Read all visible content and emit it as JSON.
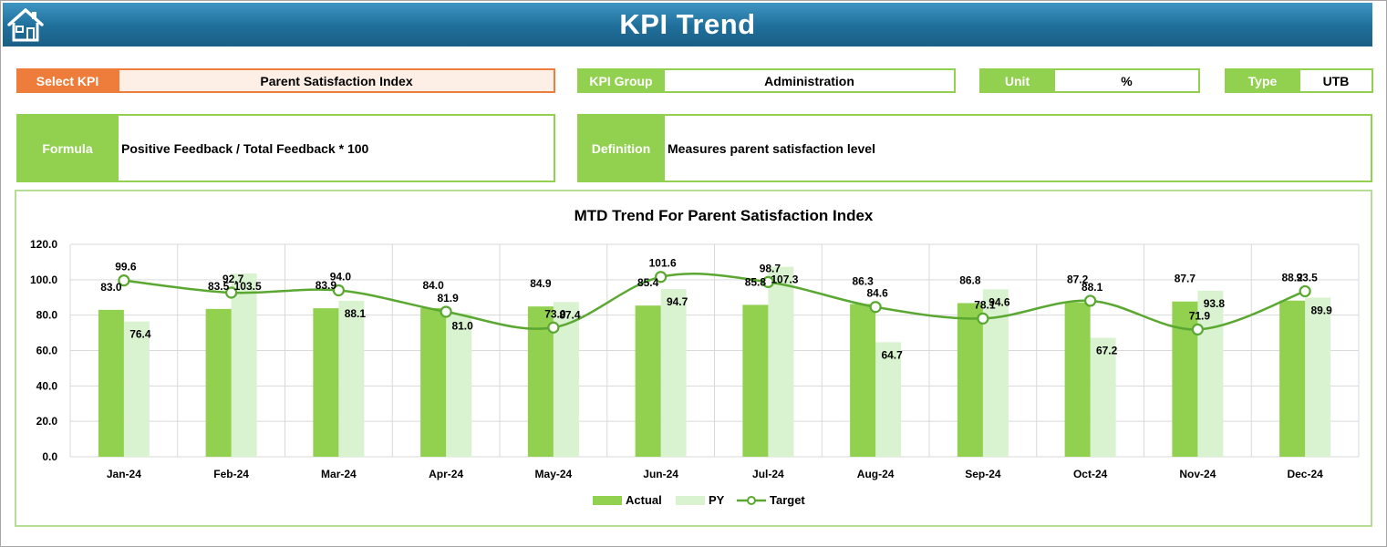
{
  "header": {
    "title": "KPI Trend",
    "home_icon": "home-icon"
  },
  "kpi": {
    "select_label": "Select KPI",
    "select_value": "Parent Satisfaction Index",
    "group_label": "KPI Group",
    "group_value": "Administration",
    "unit_label": "Unit",
    "unit_value": "%",
    "type_label": "Type",
    "type_value": "UTB",
    "formula_label": "Formula",
    "formula_value": "Positive Feedback / Total Feedback * 100",
    "definition_label": "Definition",
    "definition_value": "Measures parent satisfaction level"
  },
  "colors": {
    "accent_orange": "#ee7c3a",
    "accent_green": "#92d050",
    "header_blue": "#1f6e9a",
    "actual_bar": "#92d050",
    "py_bar": "#d9f2cf",
    "target_line": "#5aa832"
  },
  "chart_data": {
    "type": "bar",
    "title": "MTD Trend For Parent Satisfaction Index",
    "categories": [
      "Jan-24",
      "Feb-24",
      "Mar-24",
      "Apr-24",
      "May-24",
      "Jun-24",
      "Jul-24",
      "Aug-24",
      "Sep-24",
      "Oct-24",
      "Nov-24",
      "Dec-24"
    ],
    "series": [
      {
        "name": "Actual",
        "kind": "bar",
        "values": [
          83.0,
          83.5,
          83.9,
          84.0,
          84.9,
          85.4,
          85.8,
          86.3,
          86.8,
          87.2,
          87.7,
          88.2
        ]
      },
      {
        "name": "PY",
        "kind": "bar",
        "values": [
          76.4,
          103.5,
          88.1,
          81.0,
          87.4,
          94.7,
          107.3,
          64.7,
          94.6,
          67.2,
          93.8,
          89.9
        ]
      },
      {
        "name": "Target",
        "kind": "line",
        "smooth": true,
        "values": [
          99.6,
          92.7,
          94.0,
          81.9,
          73.0,
          101.6,
          98.7,
          84.6,
          78.1,
          88.1,
          71.9,
          93.5
        ]
      }
    ],
    "data_labels": {
      "actual": [
        "83.0",
        "83.5",
        "83.9",
        "84.0",
        "84.9",
        "85.4",
        "85.8",
        "86.3",
        "86.8",
        "87.2",
        "87.7",
        "88.2"
      ],
      "py": [
        "76.4",
        "103.5",
        "88.1",
        "81.0",
        "87.4",
        "94.7",
        "107.3",
        "64.7",
        "94.6",
        "67.2",
        "93.8",
        "89.9"
      ],
      "target": [
        "99.6",
        "92.7",
        "94.0",
        "81.9",
        "73.0",
        "101.6",
        "98.7",
        "84.6",
        "78.1",
        "88.1",
        "71.9",
        "93.5"
      ]
    },
    "ylim": [
      0,
      120
    ],
    "yticks": [
      "0.0",
      "20.0",
      "40.0",
      "60.0",
      "80.0",
      "100.0",
      "120.0"
    ],
    "ytick_values": [
      0,
      20,
      40,
      60,
      80,
      100,
      120
    ],
    "grid": true,
    "legend": {
      "position": "bottom",
      "entries": [
        "Actual",
        "PY",
        "Target"
      ]
    }
  }
}
